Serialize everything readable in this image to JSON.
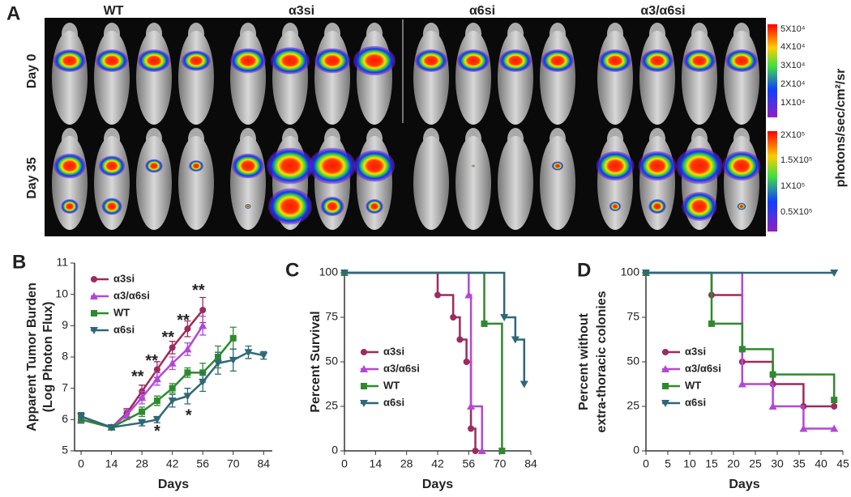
{
  "panel_a": {
    "label": "A",
    "columns": [
      "WT",
      "α3si",
      "α6si",
      "α3/α6si"
    ],
    "rows": [
      "Day 0",
      "Day 35"
    ],
    "colorbars": [
      [
        "5X10⁴",
        "4X10⁴",
        "3X10⁴",
        "2X10⁴",
        "1X10⁴"
      ],
      [
        "2X10⁵",
        "1.5X10⁵",
        "1X10⁵",
        "0.5X10⁵"
      ]
    ],
    "colorbar_label": "photons/sec/cm²/sr"
  },
  "chart_data": [
    {
      "panel": "B",
      "type": "line",
      "xlabel": "Days",
      "ylabel": [
        "Apparent Tumor Burden",
        "(Log Photon Flux)"
      ],
      "xlim": [
        -3,
        88
      ],
      "ylim": [
        5,
        11
      ],
      "xticks": [
        0,
        14,
        28,
        42,
        56,
        70,
        84
      ],
      "yticks": [
        5,
        6,
        7,
        8,
        9,
        10,
        11
      ],
      "legend": "upper left",
      "series": [
        {
          "name": "α3si",
          "color": "#9c2b5e",
          "marker": "circle",
          "x": [
            0,
            14,
            21,
            28,
            35,
            42,
            49,
            56
          ],
          "values": [
            6.1,
            5.75,
            6.2,
            6.9,
            7.6,
            8.3,
            8.9,
            9.5
          ],
          "errors": [
            0.12,
            0.05,
            0.15,
            0.2,
            0.25,
            0.2,
            0.25,
            0.4
          ]
        },
        {
          "name": "α3/α6si",
          "color": "#b347d6",
          "marker": "triangle-up",
          "x": [
            0,
            14,
            21,
            28,
            35,
            42,
            49,
            56
          ],
          "values": [
            6.0,
            5.75,
            6.15,
            6.7,
            7.3,
            7.8,
            8.25,
            9.0
          ],
          "errors": [
            0.12,
            0.05,
            0.15,
            0.2,
            0.2,
            0.2,
            0.2,
            0.3
          ]
        },
        {
          "name": "WT",
          "color": "#2f8a2f",
          "marker": "square",
          "x": [
            0,
            14,
            28,
            35,
            42,
            49,
            56,
            63,
            70
          ],
          "values": [
            6.0,
            5.75,
            6.25,
            6.6,
            7.0,
            7.5,
            7.5,
            8.0,
            8.6
          ],
          "errors": [
            0.1,
            0.05,
            0.15,
            0.15,
            0.15,
            0.15,
            0.3,
            0.35,
            0.35
          ]
        },
        {
          "name": "α6si",
          "color": "#2e6878",
          "marker": "triangle-down",
          "x": [
            0,
            14,
            28,
            35,
            42,
            49,
            56,
            63,
            70,
            77,
            84
          ],
          "values": [
            6.1,
            5.75,
            5.9,
            6.0,
            6.6,
            6.75,
            7.2,
            7.8,
            7.9,
            8.15,
            8.05
          ],
          "errors": [
            0.12,
            0.05,
            0.1,
            0.1,
            0.2,
            0.25,
            0.3,
            0.35,
            0.35,
            0.2,
            0.12
          ]
        }
      ],
      "annotations": [
        {
          "text": "**",
          "x": 26,
          "y": 7.35
        },
        {
          "text": "**",
          "x": 32.5,
          "y": 7.85
        },
        {
          "text": "**",
          "x": 40,
          "y": 8.6
        },
        {
          "text": "**",
          "x": 47,
          "y": 9.15
        },
        {
          "text": "**",
          "x": 54,
          "y": 10.1
        },
        {
          "text": "*",
          "x": 35,
          "y": 5.6
        },
        {
          "text": "*",
          "x": 49.5,
          "y": 6.1
        }
      ]
    },
    {
      "panel": "C",
      "type": "step",
      "xlabel": "Days",
      "ylabel": [
        "Percent Survival"
      ],
      "xlim": [
        0,
        84
      ],
      "ylim": [
        0,
        100
      ],
      "xticks": [
        0,
        14,
        28,
        42,
        56,
        70,
        84
      ],
      "yticks": [
        0,
        25,
        50,
        75,
        100
      ],
      "legend": "lower left",
      "series": [
        {
          "name": "α3si",
          "color": "#9c2b5e",
          "marker": "circle",
          "x": [
            0,
            42,
            49,
            52,
            55,
            57,
            59
          ],
          "values": [
            100,
            87.5,
            75,
            62.5,
            50,
            12.5,
            0
          ]
        },
        {
          "name": "α3/α6si",
          "color": "#b347d6",
          "marker": "triangle-up",
          "x": [
            0,
            56,
            57,
            62
          ],
          "values": [
            100,
            87.5,
            25,
            0
          ]
        },
        {
          "name": "WT",
          "color": "#2f8a2f",
          "marker": "square",
          "x": [
            0,
            63,
            71
          ],
          "values": [
            100,
            71.4,
            0
          ]
        },
        {
          "name": "α6si",
          "color": "#2e6878",
          "marker": "triangle-down",
          "x": [
            0,
            72,
            77,
            81
          ],
          "values": [
            100,
            75,
            62.5,
            37.5
          ]
        }
      ]
    },
    {
      "panel": "D",
      "type": "step",
      "xlabel": "Days",
      "ylabel": [
        "Percent without",
        "extra-thoracic colonies"
      ],
      "xlim": [
        0,
        45
      ],
      "ylim": [
        0,
        100
      ],
      "xticks": [
        0,
        5,
        10,
        15,
        20,
        25,
        30,
        35,
        40,
        45
      ],
      "yticks": [
        0,
        25,
        50,
        75,
        100
      ],
      "legend": "lower left",
      "series": [
        {
          "name": "α3si",
          "color": "#9c2b5e",
          "marker": "circle",
          "x": [
            0,
            15,
            22,
            29,
            36,
            43
          ],
          "values": [
            100,
            87.5,
            50,
            37.5,
            25,
            25
          ]
        },
        {
          "name": "α3/α6si",
          "color": "#b347d6",
          "marker": "triangle-up",
          "x": [
            0,
            22,
            29,
            36,
            43
          ],
          "values": [
            100,
            37.5,
            25,
            12.5,
            12.5
          ]
        },
        {
          "name": "WT",
          "color": "#2f8a2f",
          "marker": "square",
          "x": [
            0,
            15,
            22,
            29,
            43
          ],
          "values": [
            100,
            71.4,
            57.1,
            42.9,
            28.6
          ]
        },
        {
          "name": "α6si",
          "color": "#2e6878",
          "marker": "triangle-down",
          "x": [
            0,
            43
          ],
          "values": [
            100,
            100
          ]
        }
      ]
    }
  ]
}
